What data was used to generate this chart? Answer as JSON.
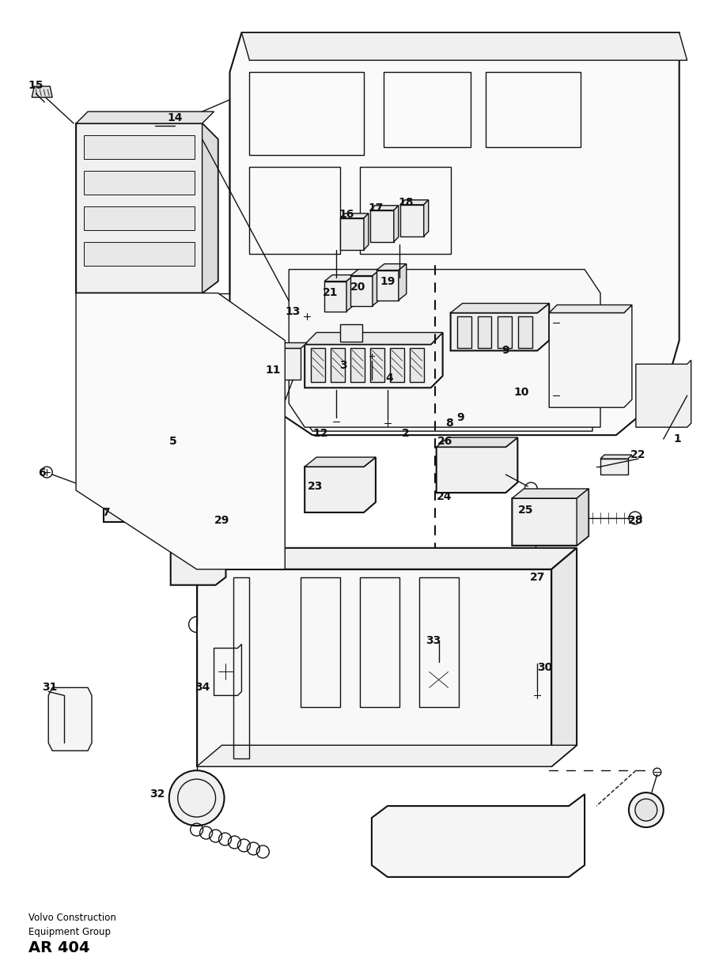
{
  "bg_color": "#ffffff",
  "line_color": "#111111",
  "label_color": "#000000",
  "fig_width": 8.9,
  "fig_height": 12.29,
  "footer_text1": "Volvo Construction",
  "footer_text2": "Equipment Group",
  "footer_text3": "AR 404"
}
